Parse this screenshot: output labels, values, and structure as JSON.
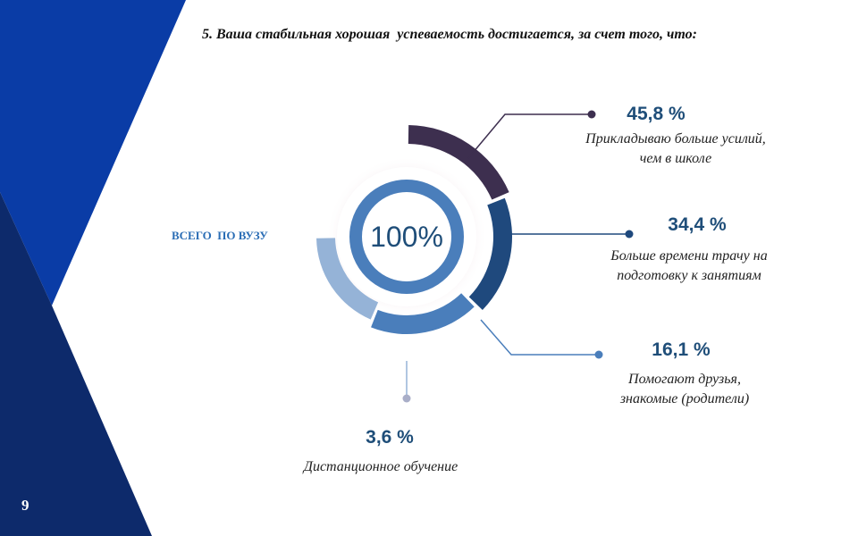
{
  "slide": {
    "title": "5. Ваша стабильная хорошая  успеваемость достигается, за счет того, что:",
    "side_label": "ВСЕГО  ПО ВУЗУ",
    "page_number": "9"
  },
  "colors": {
    "background_dark_blue": "#0d2a6b",
    "background_bright_blue": "#0a3ca6",
    "accent": "#1f4e79"
  },
  "chart_data": {
    "type": "pie",
    "center_label": "100%",
    "categories": [
      "Прикладываю больше усилий, чем в школе",
      "Больше времени трачу на подготовку к занятиям",
      "Помогают друзья, знакомые (родители)",
      "Дистанционное обучение"
    ],
    "values": [
      45.8,
      34.4,
      16.1,
      3.6
    ],
    "value_labels": [
      "45,8 %",
      "34,4 %",
      "16,1 %",
      "3,6 %"
    ],
    "colors": [
      "#3d2f4f",
      "#1f497d",
      "#4a7ebb",
      "#95b3d7"
    ],
    "descriptions": [
      [
        "Прикладываю больше усилий,",
        "чем в школе"
      ],
      [
        "Больше времени трачу на",
        "подготовку к занятиям"
      ],
      [
        "Помогают друзья,",
        "знакомые (родители)"
      ],
      [
        "Дистанционное обучение"
      ]
    ]
  }
}
